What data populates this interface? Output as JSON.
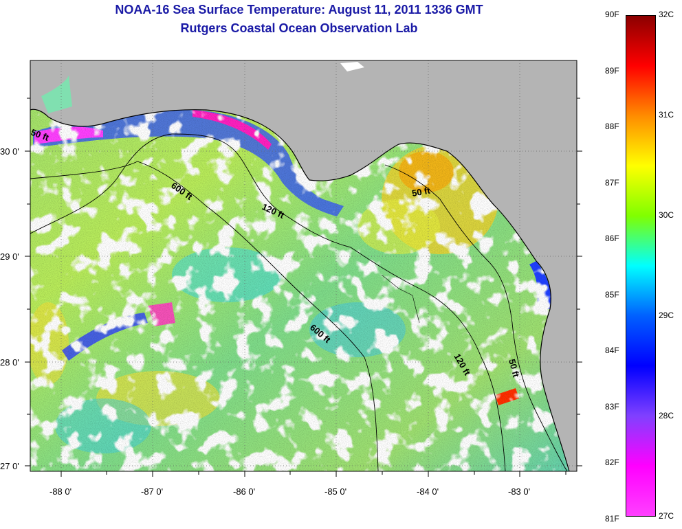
{
  "title": {
    "line1": "NOAA-16 Sea Surface Temperature:  August 11, 2011 1336 GMT",
    "line2": "Rutgers Coastal Ocean Observation Lab"
  },
  "map": {
    "lon_labels": [
      "-88 0'",
      "-87 0'",
      "-86 0'",
      "-85 0'",
      "-84 0'",
      "-83 0'"
    ],
    "lat_labels": [
      "30 0'",
      "29 0'",
      "28 0'",
      "27 0'"
    ],
    "contours": [
      {
        "label": "600 ft",
        "bind": "a"
      },
      {
        "label": "120 ft",
        "bind": "b"
      },
      {
        "label": "600 ft",
        "bind": "c"
      },
      {
        "label": "120 ft",
        "bind": "d"
      },
      {
        "label": "50 ft",
        "bind": "e"
      },
      {
        "label": "50 ft",
        "bind": "f"
      },
      {
        "label": "50 ft",
        "bind": "g"
      }
    ],
    "colors": {
      "land": "#b4b4b4",
      "cloud": "#ffffff",
      "coast": "#000000"
    }
  },
  "colorbar": {
    "fahrenheit": [
      "90F",
      "89F",
      "88F",
      "87F",
      "86F",
      "85F",
      "84F",
      "83F",
      "82F",
      "81F"
    ],
    "celsius": [
      "32C",
      "31C",
      "30C",
      "29C",
      "28C",
      "27C"
    ],
    "colors": [
      "#8b0000",
      "#ff0000",
      "#ff8c00",
      "#ffff00",
      "#80ff00",
      "#00ffff",
      "#0060ff",
      "#0000ff",
      "#8040ff",
      "#ff00ff",
      "#ff40ff"
    ]
  }
}
